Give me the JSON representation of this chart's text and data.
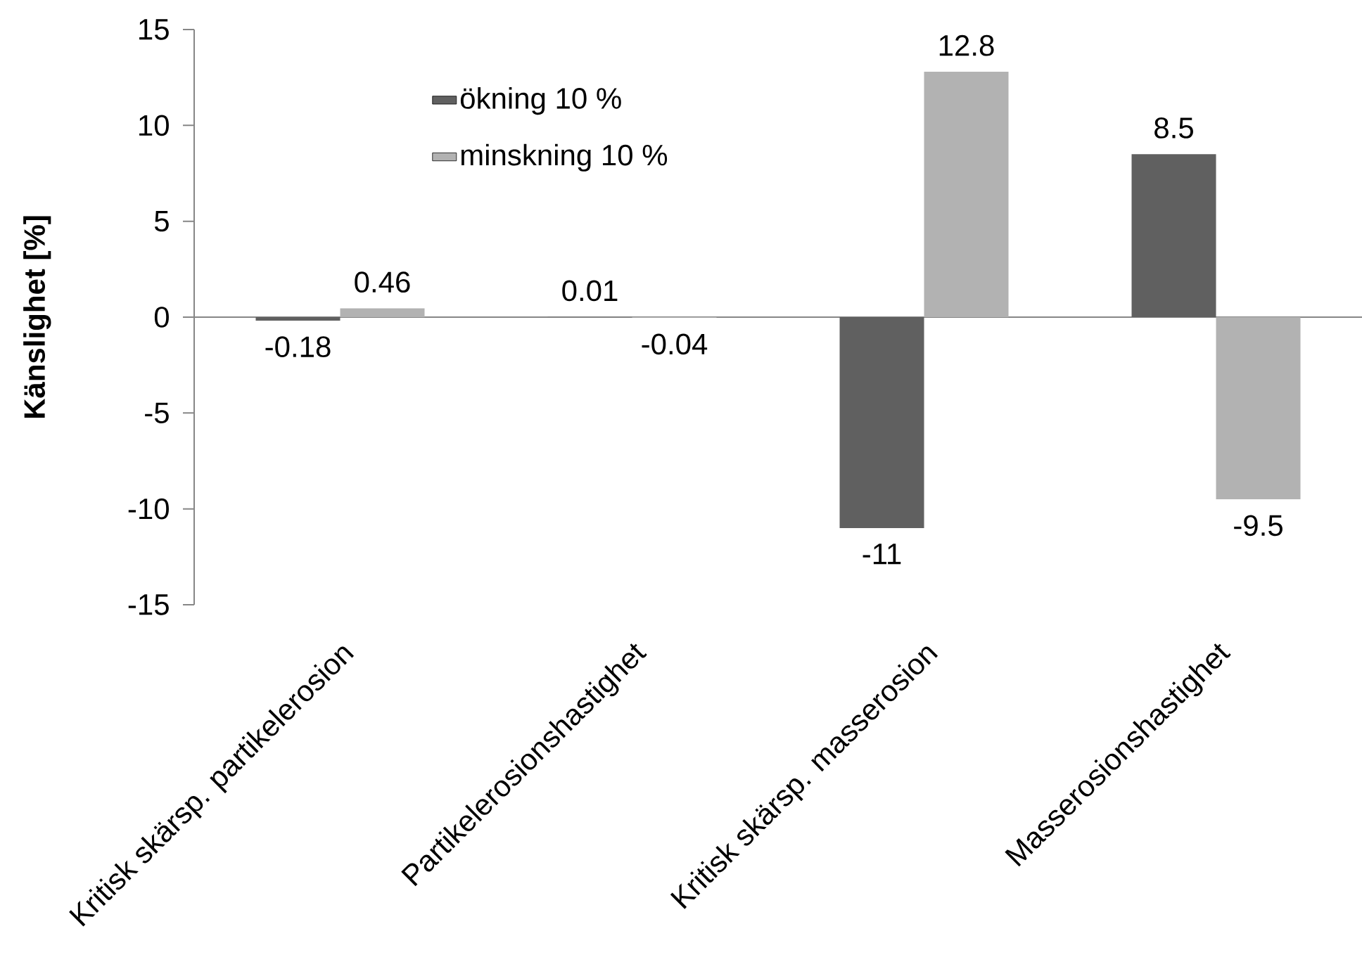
{
  "chart_data": {
    "type": "bar",
    "ylabel": "Känslighet [%]",
    "categories": [
      "Kritisk skärsp. partikelerosion",
      "Partikelerosionshastighet",
      "Kritisk skärsp. masserosion",
      "Masserosionshastighet"
    ],
    "series": [
      {
        "name": "ökning 10 %",
        "color": "#606060",
        "values": [
          -0.18,
          0.01,
          -11,
          8.5
        ]
      },
      {
        "name": "minskning 10 %",
        "color": "#b2b2b2",
        "values": [
          0.46,
          -0.04,
          12.8,
          -9.5
        ]
      }
    ],
    "ylim": [
      -15,
      15
    ],
    "yticks": [
      -15,
      -10,
      -5,
      0,
      5,
      10,
      15
    ],
    "data_labels": true,
    "legend": "top left"
  }
}
